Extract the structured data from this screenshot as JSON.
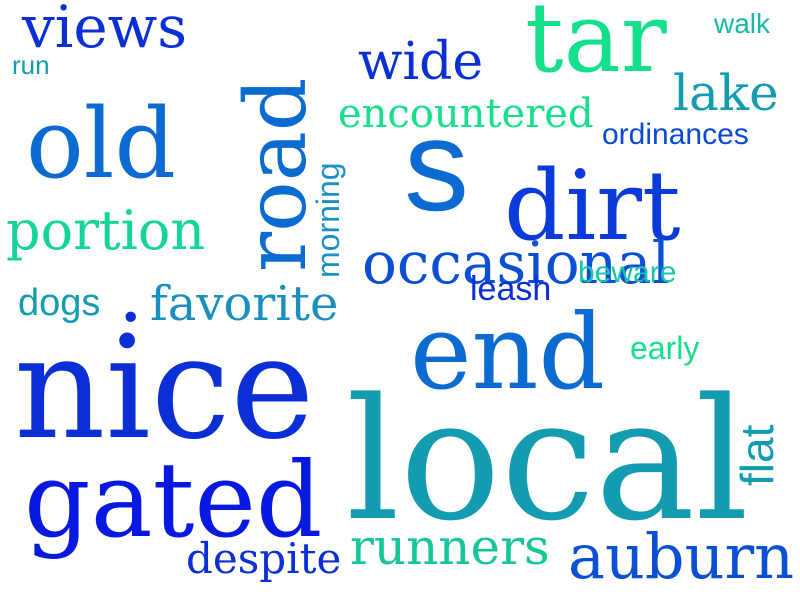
{
  "words": [
    {
      "id": "views",
      "text": "views",
      "color": "#0a2fd6"
    },
    {
      "id": "run",
      "text": "run",
      "color": "#139cb0"
    },
    {
      "id": "road",
      "text": "road",
      "color": "#0b6bd0"
    },
    {
      "id": "tar",
      "text": "tar",
      "color": "#14e08c"
    },
    {
      "id": "walk",
      "text": "walk",
      "color": "#1ab8a6"
    },
    {
      "id": "wide",
      "text": "wide",
      "color": "#0a2fd6"
    },
    {
      "id": "lake",
      "text": "lake",
      "color": "#139cb0"
    },
    {
      "id": "old",
      "text": "old",
      "color": "#0b6bd0"
    },
    {
      "id": "encountered",
      "text": "encountered",
      "color": "#14e08c"
    },
    {
      "id": "ordinances",
      "text": "ordinances",
      "color": "#0a48d6"
    },
    {
      "id": "s",
      "text": "s",
      "color": "#0b6bd0"
    },
    {
      "id": "dirt",
      "text": "dirt",
      "color": "#0a3ad9"
    },
    {
      "id": "portion",
      "text": "portion",
      "color": "#14d49a"
    },
    {
      "id": "morning",
      "text": "morning",
      "color": "#1c8fc8"
    },
    {
      "id": "occasional",
      "text": "occasional",
      "color": "#0b50d4"
    },
    {
      "id": "flat",
      "text": "flat",
      "color": "#139cb0"
    },
    {
      "id": "beware",
      "text": "beware",
      "color": "#1ac4ad"
    },
    {
      "id": "leash",
      "text": "leash",
      "color": "#0a2fd6"
    },
    {
      "id": "dogs",
      "text": "dogs",
      "color": "#139cb0"
    },
    {
      "id": "dot",
      "text": ".",
      "color": "#0a2fd6"
    },
    {
      "id": "favorite",
      "text": "favorite",
      "color": "#1a8fbd"
    },
    {
      "id": "end",
      "text": "end",
      "color": "#0b6bd0"
    },
    {
      "id": "early",
      "text": "early",
      "color": "#14e08c"
    },
    {
      "id": "nice",
      "text": "nice",
      "color": "#0a2fd6"
    },
    {
      "id": "local",
      "text": "local",
      "color": "#139cb0"
    },
    {
      "id": "gated",
      "text": "gated",
      "color": "#0718e0"
    },
    {
      "id": "runners",
      "text": "runners",
      "color": "#14c69a"
    },
    {
      "id": "despite",
      "text": "despite",
      "color": "#0a2fd6"
    },
    {
      "id": "auburn",
      "text": "auburn",
      "color": "#0b50d4"
    }
  ]
}
